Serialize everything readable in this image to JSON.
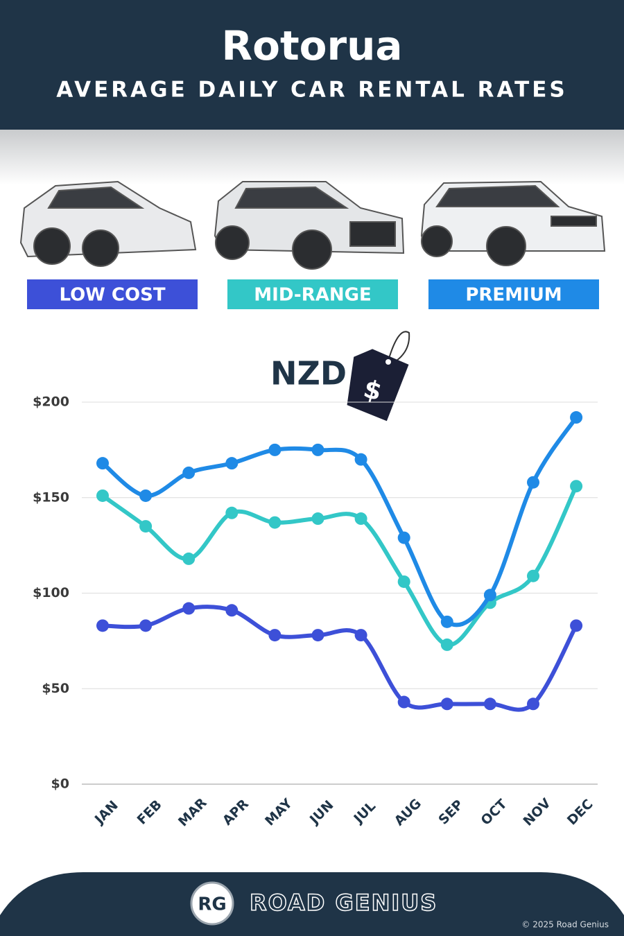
{
  "header": {
    "title": "Rotorua",
    "subtitle": "AVERAGE DAILY CAR RENTAL RATES"
  },
  "chart_data": {
    "type": "line",
    "title": "NZD",
    "currency_icon": "$",
    "categories": [
      "JAN",
      "FEB",
      "MAR",
      "APR",
      "MAY",
      "JUN",
      "JUL",
      "AUG",
      "SEP",
      "OCT",
      "NOV",
      "DEC"
    ],
    "series": [
      {
        "name": "LOW COST",
        "color": "#3d50d8",
        "values": [
          83,
          83,
          92,
          91,
          78,
          78,
          78,
          43,
          42,
          42,
          42,
          83
        ]
      },
      {
        "name": "MID-RANGE",
        "color": "#33c7c7",
        "values": [
          151,
          135,
          118,
          142,
          137,
          139,
          139,
          106,
          73,
          95,
          109,
          156
        ]
      },
      {
        "name": "PREMIUM",
        "color": "#1f8ae6",
        "values": [
          168,
          151,
          163,
          168,
          175,
          175,
          170,
          129,
          85,
          99,
          158,
          192
        ]
      }
    ],
    "ylim": [
      0,
      200
    ],
    "yticks": [
      {
        "value": 0,
        "label": "$0"
      },
      {
        "value": 50,
        "label": "$50"
      },
      {
        "value": 100,
        "label": "$100"
      },
      {
        "value": 150,
        "label": "$150"
      },
      {
        "value": 200,
        "label": "$200"
      }
    ],
    "grid": true,
    "smooth": true
  },
  "footer": {
    "logo": "RG",
    "brand": "ROAD GENIUS",
    "copyright": "© 2025 Road Genius"
  }
}
